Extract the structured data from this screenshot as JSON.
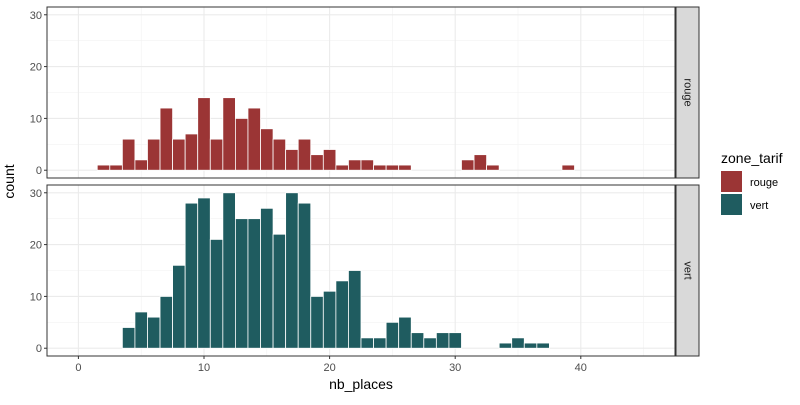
{
  "chart_data": {
    "type": "bar",
    "subtype": "faceted-histogram",
    "xlabel": "nb_places",
    "ylabel": "count",
    "x_ticks": [
      0,
      10,
      20,
      30,
      40
    ],
    "y_ticks": [
      0,
      10,
      20,
      30
    ],
    "xlim": [
      -2.5,
      47.5
    ],
    "ylim": [
      -1.5,
      31.5
    ],
    "grid": true,
    "legend": {
      "title": "zone_tarif",
      "position": "right",
      "items": [
        {
          "label": "rouge",
          "color": "#9B3535"
        },
        {
          "label": "vert",
          "color": "#1F5C60"
        }
      ]
    },
    "facets": [
      {
        "strip_label": "rouge",
        "color": "#9B3535",
        "bins": [
          {
            "x": 2,
            "y": 1
          },
          {
            "x": 3,
            "y": 1
          },
          {
            "x": 4,
            "y": 6
          },
          {
            "x": 5,
            "y": 2
          },
          {
            "x": 6,
            "y": 6
          },
          {
            "x": 7,
            "y": 12
          },
          {
            "x": 8,
            "y": 6
          },
          {
            "x": 9,
            "y": 7
          },
          {
            "x": 10,
            "y": 14
          },
          {
            "x": 11,
            "y": 6
          },
          {
            "x": 12,
            "y": 14
          },
          {
            "x": 13,
            "y": 10
          },
          {
            "x": 14,
            "y": 12
          },
          {
            "x": 15,
            "y": 8
          },
          {
            "x": 16,
            "y": 6
          },
          {
            "x": 17,
            "y": 4
          },
          {
            "x": 18,
            "y": 6
          },
          {
            "x": 19,
            "y": 3
          },
          {
            "x": 20,
            "y": 4
          },
          {
            "x": 21,
            "y": 1
          },
          {
            "x": 22,
            "y": 2
          },
          {
            "x": 23,
            "y": 2
          },
          {
            "x": 24,
            "y": 1
          },
          {
            "x": 25,
            "y": 1
          },
          {
            "x": 26,
            "y": 1
          },
          {
            "x": 31,
            "y": 2
          },
          {
            "x": 32,
            "y": 3
          },
          {
            "x": 33,
            "y": 1
          },
          {
            "x": 39,
            "y": 1
          }
        ]
      },
      {
        "strip_label": "vert",
        "color": "#1F5C60",
        "bins": [
          {
            "x": 4,
            "y": 4
          },
          {
            "x": 5,
            "y": 7
          },
          {
            "x": 6,
            "y": 6
          },
          {
            "x": 7,
            "y": 10
          },
          {
            "x": 8,
            "y": 16
          },
          {
            "x": 9,
            "y": 28
          },
          {
            "x": 10,
            "y": 29
          },
          {
            "x": 11,
            "y": 21
          },
          {
            "x": 12,
            "y": 30
          },
          {
            "x": 13,
            "y": 25
          },
          {
            "x": 14,
            "y": 25
          },
          {
            "x": 15,
            "y": 27
          },
          {
            "x": 16,
            "y": 22
          },
          {
            "x": 17,
            "y": 30
          },
          {
            "x": 18,
            "y": 28
          },
          {
            "x": 19,
            "y": 10
          },
          {
            "x": 20,
            "y": 11
          },
          {
            "x": 21,
            "y": 13
          },
          {
            "x": 22,
            "y": 15
          },
          {
            "x": 23,
            "y": 2
          },
          {
            "x": 24,
            "y": 2
          },
          {
            "x": 25,
            "y": 5
          },
          {
            "x": 26,
            "y": 6
          },
          {
            "x": 27,
            "y": 3
          },
          {
            "x": 28,
            "y": 2
          },
          {
            "x": 29,
            "y": 3
          },
          {
            "x": 30,
            "y": 3
          },
          {
            "x": 34,
            "y": 1
          },
          {
            "x": 35,
            "y": 2
          },
          {
            "x": 36,
            "y": 1
          },
          {
            "x": 37,
            "y": 1
          }
        ]
      }
    ]
  }
}
